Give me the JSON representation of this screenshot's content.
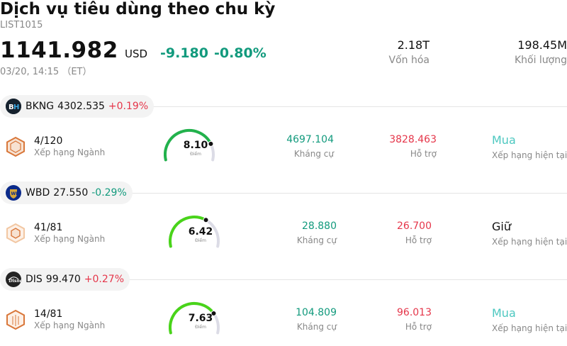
{
  "header": {
    "title": "Dịch vụ tiêu dùng theo chu kỳ",
    "code": "LIST1015",
    "price": "1141.982",
    "currency": "USD",
    "change": "-9.180",
    "change_pct": "-0.80%",
    "time": "03/20, 14:15 （ET）",
    "market_cap_value": "2.18T",
    "market_cap_label": "Vốn hóa",
    "volume_value": "198.45M",
    "volume_label": "Khối lượng"
  },
  "colors": {
    "positive": "#e5364a",
    "negative": "#129a7d",
    "buy": "#4dc8c0"
  },
  "stocks": [
    {
      "logo_icon": "booking-holdings-logo-icon",
      "ticker": "BKNG",
      "price": "4302.535",
      "change": "+0.19%",
      "rank": "4/120",
      "rank_label": "Xếp hạng Ngành",
      "score": "8.10",
      "score_fraction": 0.81,
      "score_label": "Điểm",
      "resistance": "4697.104",
      "resistance_label": "Kháng cự",
      "support": "3828.463",
      "support_label": "Hỗ trợ",
      "rating": "Mua",
      "rating_label": "Xếp hạng hiện tại"
    },
    {
      "logo_icon": "warner-bros-logo-icon",
      "ticker": "WBD",
      "price": "27.550",
      "change": "-0.29%",
      "rank": "41/81",
      "rank_label": "Xếp hạng Ngành",
      "score": "6.42",
      "score_fraction": 0.642,
      "score_label": "Điểm",
      "resistance": "28.880",
      "resistance_label": "Kháng cự",
      "support": "26.700",
      "support_label": "Hỗ trợ",
      "rating": "Giữ",
      "rating_label": "Xếp hạng hiện tại"
    },
    {
      "logo_icon": "disney-logo-icon",
      "ticker": "DIS",
      "price": "99.470",
      "change": "+0.27%",
      "rank": "14/81",
      "rank_label": "Xếp hạng Ngành",
      "score": "7.63",
      "score_fraction": 0.763,
      "score_label": "Điểm",
      "resistance": "104.809",
      "resistance_label": "Kháng cự",
      "support": "96.013",
      "support_label": "Hỗ trợ",
      "rating": "Mua",
      "rating_label": "Xếp hạng hiện tại"
    }
  ]
}
